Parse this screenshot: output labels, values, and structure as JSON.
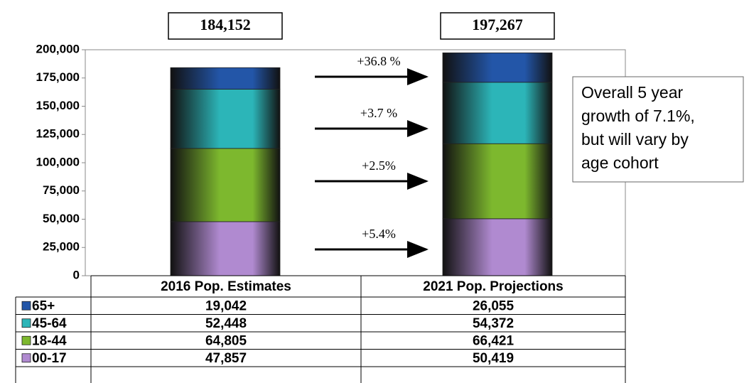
{
  "chart_data": {
    "type": "stacked_bar",
    "categories": [
      "2016 Pop. Estimates",
      "2021 Pop. Projections"
    ],
    "total_labels": [
      "184,152",
      "197,267"
    ],
    "series": [
      {
        "name": "00-17",
        "color": "#b08ad0",
        "values": [
          47857,
          50419
        ],
        "value_labels": [
          "47,857",
          "50,419"
        ]
      },
      {
        "name": "18-44",
        "color": "#7db82e",
        "values": [
          64805,
          66421
        ],
        "value_labels": [
          "64,805",
          "66,421"
        ]
      },
      {
        "name": "45-64",
        "color": "#2cb5b8",
        "values": [
          52448,
          54372
        ],
        "value_labels": [
          "52,448",
          "54,372"
        ]
      },
      {
        "name": "65+",
        "color": "#2356a8",
        "values": [
          19042,
          26055
        ],
        "value_labels": [
          "19,042",
          "26,055"
        ]
      }
    ],
    "ylim": [
      0,
      200000
    ],
    "yticks": [
      0,
      {
        "value": 25000,
        "label": "25,000"
      },
      {
        "value": 50000,
        "label": "50,000"
      },
      {
        "value": 75000,
        "label": "75,000"
      },
      {
        "value": 100000,
        "label": "100,000"
      },
      {
        "value": 125000,
        "label": "125,000"
      },
      {
        "value": 150000,
        "label": "150,000"
      },
      {
        "value": 175000,
        "label": "175,000"
      },
      {
        "value": 200000,
        "label": "200,000"
      }
    ],
    "annotations": [
      "+36.8 %",
      "+3.7 %",
      "+2.5%",
      "+5.4%"
    ],
    "note_lines": [
      "Overall 5 year",
      "growth of 7.1%,",
      "but will vary by",
      "age cohort"
    ]
  }
}
